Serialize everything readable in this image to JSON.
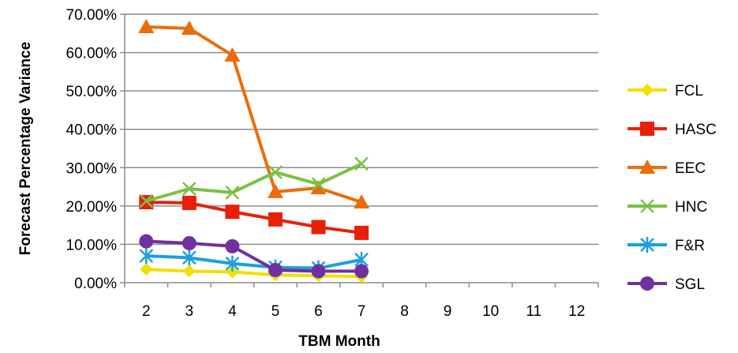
{
  "chart_data": {
    "type": "line",
    "xlabel": "TBM Month",
    "ylabel": "Forecast Percentage Variance",
    "x": [
      2,
      3,
      4,
      5,
      6,
      7,
      8,
      9,
      10,
      11,
      12
    ],
    "x_tick_labels": [
      "2",
      "3",
      "4",
      "5",
      "6",
      "7",
      "8",
      "9",
      "10",
      "11",
      "12"
    ],
    "ylim": [
      0,
      0.7
    ],
    "y_tick_values": [
      0,
      0.1,
      0.2,
      0.3,
      0.4,
      0.5,
      0.6,
      0.7
    ],
    "y_tick_labels": [
      "0.00%",
      "10.00%",
      "20.00%",
      "30.00%",
      "40.00%",
      "50.00%",
      "60.00%",
      "70.00%"
    ],
    "grid": "horizontal",
    "legend_position": "right",
    "series": [
      {
        "name": "FCL",
        "color": "#f0e000",
        "marker": "diamond",
        "x": [
          2,
          3,
          4,
          5,
          6,
          7
        ],
        "values": [
          0.035,
          0.03,
          0.028,
          0.02,
          0.018,
          0.016
        ]
      },
      {
        "name": "HASC",
        "color": "#e8200a",
        "marker": "square",
        "x": [
          2,
          3,
          4,
          5,
          6,
          7
        ],
        "values": [
          0.21,
          0.208,
          0.185,
          0.165,
          0.145,
          0.13
        ]
      },
      {
        "name": "EEC",
        "color": "#ec6c0a",
        "marker": "triangle",
        "x": [
          2,
          3,
          4,
          5,
          6,
          7
        ],
        "values": [
          0.667,
          0.663,
          0.593,
          0.237,
          0.247,
          0.21
        ]
      },
      {
        "name": "HNC",
        "color": "#7ac143",
        "marker": "x",
        "x": [
          2,
          3,
          4,
          5,
          6,
          7
        ],
        "values": [
          0.213,
          0.245,
          0.235,
          0.288,
          0.257,
          0.31
        ]
      },
      {
        "name": "F&R",
        "color": "#1ca0dc",
        "marker": "star",
        "x": [
          2,
          3,
          4,
          5,
          6,
          7
        ],
        "values": [
          0.07,
          0.065,
          0.05,
          0.04,
          0.038,
          0.06
        ]
      },
      {
        "name": "SGL",
        "color": "#7030a0",
        "marker": "circle",
        "x": [
          2,
          3,
          4,
          5,
          6,
          7
        ],
        "values": [
          0.108,
          0.103,
          0.095,
          0.033,
          0.03,
          0.03
        ]
      }
    ]
  }
}
